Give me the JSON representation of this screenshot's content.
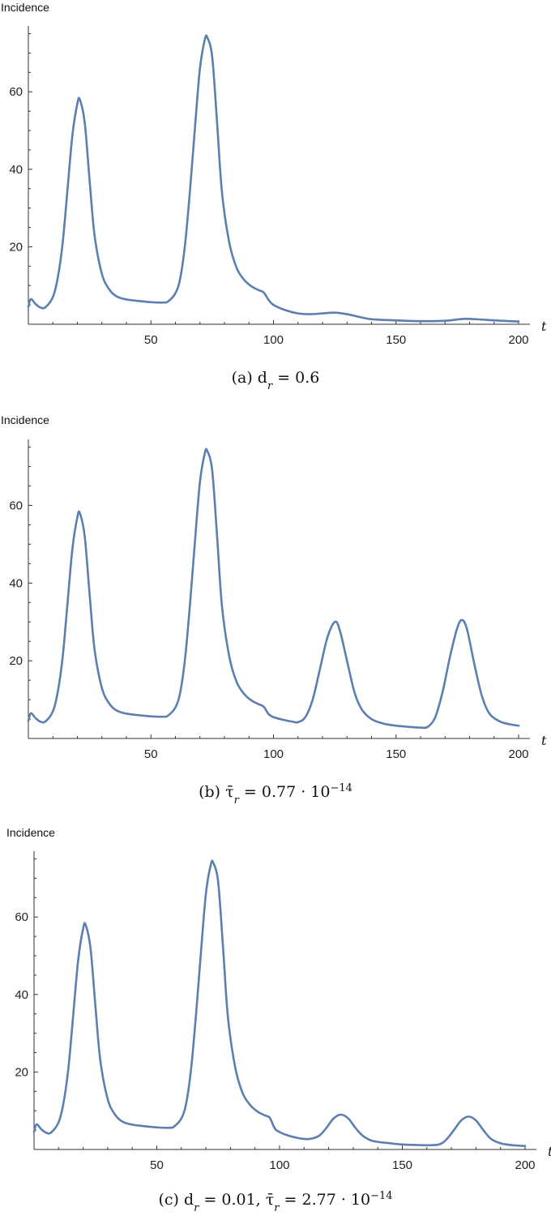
{
  "colors": {
    "series": "#5b7fb0",
    "axis": "#333333"
  },
  "chart_data": [
    {
      "type": "line",
      "ylabel": "Incidence",
      "xlabel": "t",
      "xlim": [
        0,
        200
      ],
      "ylim": [
        0,
        77
      ],
      "xticks": [
        50,
        100,
        150,
        200
      ],
      "yticks": [
        20,
        40,
        60
      ],
      "caption": "(a) d_r = 0.6",
      "series": [
        {
          "x": [
            0,
            1,
            3,
            5,
            7,
            10,
            12,
            14,
            16,
            18,
            20,
            21,
            23,
            25,
            27,
            30,
            33,
            36,
            40,
            45,
            50,
            55,
            57,
            60,
            62,
            64,
            66,
            68,
            70,
            72,
            73,
            75,
            77,
            79,
            82,
            85,
            88,
            91,
            94,
            96,
            98,
            100,
            105,
            110,
            115,
            120,
            125,
            130,
            135,
            140,
            150,
            160,
            170,
            178,
            185,
            190,
            200
          ],
          "y": [
            4.5,
            6.5,
            5.2,
            4.3,
            4.4,
            7,
            12,
            21,
            35,
            49,
            57,
            58,
            52,
            37,
            23,
            13,
            9,
            7.2,
            6.4,
            6.0,
            5.7,
            5.6,
            5.9,
            8,
            12,
            21,
            35,
            51,
            66,
            73.5,
            74,
            69,
            52,
            34,
            21,
            14.5,
            11.5,
            9.8,
            8.8,
            8.2,
            6.3,
            5.0,
            3.6,
            2.8,
            2.6,
            2.8,
            3.0,
            2.6,
            1.9,
            1.3,
            1.0,
            0.8,
            0.9,
            1.4,
            1.2,
            1.0,
            0.7
          ]
        }
      ]
    },
    {
      "type": "line",
      "ylabel": "Incidence",
      "xlabel": "t",
      "xlim": [
        0,
        200
      ],
      "ylim": [
        0,
        77
      ],
      "xticks": [
        50,
        100,
        150,
        200
      ],
      "yticks": [
        20,
        40,
        60
      ],
      "caption": "(b) τ̄_r = 0.77 · 10^−14",
      "series": [
        {
          "x": [
            0,
            1,
            3,
            5,
            7,
            10,
            12,
            14,
            16,
            18,
            20,
            21,
            23,
            25,
            27,
            30,
            33,
            36,
            40,
            45,
            50,
            55,
            57,
            60,
            62,
            64,
            66,
            68,
            70,
            72,
            73,
            75,
            77,
            79,
            82,
            85,
            88,
            91,
            94,
            96,
            98,
            100,
            104,
            108,
            110,
            113,
            116,
            119,
            122,
            125,
            127,
            130,
            133,
            136,
            140,
            145,
            150,
            155,
            160,
            163,
            166,
            169,
            172,
            175,
            177,
            179,
            182,
            185,
            188,
            192,
            196,
            200
          ],
          "y": [
            4.5,
            6.5,
            5.2,
            4.3,
            4.4,
            7,
            12,
            21,
            35,
            49,
            57,
            58,
            52,
            37,
            23,
            13,
            9,
            7.2,
            6.4,
            6.0,
            5.7,
            5.6,
            5.9,
            8,
            12,
            21,
            35,
            51,
            66,
            73.5,
            74,
            69,
            52,
            34,
            21,
            14.5,
            11.5,
            9.8,
            8.8,
            8.2,
            6.3,
            5.5,
            4.8,
            4.3,
            4.2,
            5.5,
            10,
            18,
            26,
            30,
            28,
            20,
            12,
            7.5,
            5.0,
            3.8,
            3.3,
            3.0,
            2.8,
            3.0,
            5.5,
            12,
            21,
            28.5,
            30.5,
            28,
            19,
            11,
            6.5,
            4.5,
            3.7,
            3.3
          ]
        }
      ]
    },
    {
      "type": "line",
      "ylabel": "Incidence",
      "xlabel": "t",
      "xlim": [
        0,
        200
      ],
      "ylim": [
        0,
        77
      ],
      "xticks": [
        50,
        100,
        150,
        200
      ],
      "yticks": [
        20,
        40,
        60
      ],
      "caption": "(c) d_r = 0.01, τ̄_r = 2.77 · 10^−14",
      "series": [
        {
          "x": [
            0,
            1,
            3,
            5,
            7,
            10,
            12,
            14,
            16,
            18,
            20,
            21,
            23,
            25,
            27,
            30,
            33,
            36,
            40,
            45,
            50,
            55,
            57,
            60,
            62,
            64,
            66,
            68,
            70,
            72,
            73,
            75,
            77,
            79,
            82,
            85,
            88,
            91,
            94,
            96,
            98,
            100,
            104,
            108,
            112,
            116,
            119,
            122,
            125,
            128,
            131,
            134,
            138,
            145,
            150,
            160,
            165,
            168,
            171,
            174,
            177,
            180,
            183,
            186,
            190,
            195,
            200
          ],
          "y": [
            4.5,
            6.5,
            5.2,
            4.3,
            4.4,
            7,
            12,
            21,
            35,
            49,
            57,
            58,
            52,
            37,
            23,
            13,
            9,
            7.2,
            6.4,
            6.0,
            5.7,
            5.6,
            5.9,
            8,
            12,
            21,
            35,
            51,
            66,
            73.5,
            74,
            69,
            52,
            34,
            21,
            14.5,
            11.5,
            9.8,
            8.8,
            8.2,
            5.5,
            4.5,
            3.5,
            2.9,
            2.7,
            3.5,
            5.5,
            8.0,
            9.0,
            8.0,
            5.5,
            3.5,
            2.2,
            1.6,
            1.3,
            1.1,
            1.3,
            2.6,
            5.0,
            7.5,
            8.5,
            7.5,
            5.0,
            2.8,
            1.6,
            1.1,
            0.9
          ]
        }
      ]
    }
  ]
}
